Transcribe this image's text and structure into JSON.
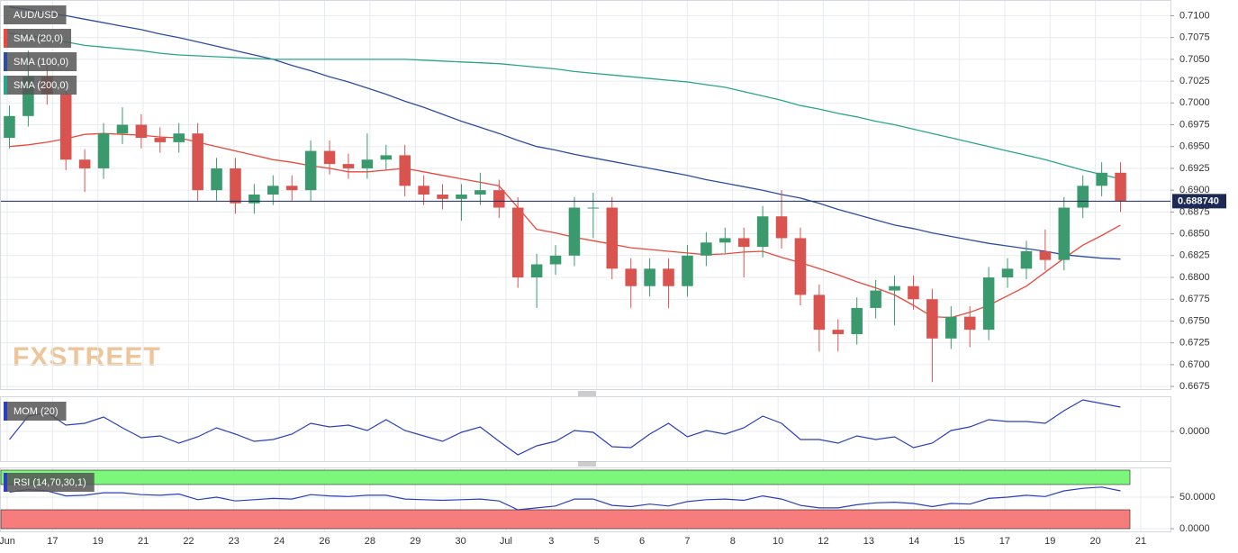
{
  "chart_data": [
    {
      "type": "candlestick",
      "title": "AUD/USD",
      "watermark": "FXSTREET",
      "up_color": "#3a9a6e",
      "down_color": "#d9534f",
      "x_labels": [
        "Jun",
        "17",
        "19",
        "21",
        "22",
        "23",
        "24",
        "26",
        "28",
        "29",
        "30",
        "Jul",
        "3",
        "5",
        "6",
        "7",
        "8",
        "10",
        "12",
        "13",
        "14",
        "15",
        "17",
        "19",
        "20",
        "21"
      ],
      "open": [
        0.696,
        0.6985,
        0.703,
        0.701,
        0.6935,
        0.6925,
        0.6965,
        0.6975,
        0.696,
        0.6955,
        0.6965,
        0.69,
        0.6925,
        0.6885,
        0.6895,
        0.6905,
        0.69,
        0.6945,
        0.693,
        0.6925,
        0.6935,
        0.694,
        0.6905,
        0.6895,
        0.689,
        0.6895,
        0.69,
        0.688,
        0.68,
        0.6815,
        0.6825,
        0.688,
        0.688,
        0.681,
        0.679,
        0.681,
        0.679,
        0.6825,
        0.684,
        0.6845,
        0.6835,
        0.687,
        0.6845,
        0.678,
        0.674,
        0.6735,
        0.6765,
        0.6785,
        0.679,
        0.6775,
        0.673,
        0.6755,
        0.674,
        0.68,
        0.681,
        0.683,
        0.682,
        0.688,
        0.6905,
        0.692
      ],
      "high": [
        0.6997,
        0.706,
        0.7042,
        0.7022,
        0.6947,
        0.6977,
        0.6995,
        0.6987,
        0.6972,
        0.6977,
        0.6977,
        0.6937,
        0.6937,
        0.6907,
        0.6917,
        0.6917,
        0.6957,
        0.6957,
        0.6942,
        0.6965,
        0.6952,
        0.6952,
        0.6917,
        0.6907,
        0.6907,
        0.692,
        0.6912,
        0.6892,
        0.6827,
        0.6837,
        0.6892,
        0.6897,
        0.6892,
        0.6822,
        0.6822,
        0.6822,
        0.6837,
        0.6852,
        0.6857,
        0.6857,
        0.6882,
        0.69,
        0.6857,
        0.6792,
        0.6752,
        0.6777,
        0.6797,
        0.6802,
        0.6802,
        0.6787,
        0.6767,
        0.6767,
        0.6812,
        0.6822,
        0.6842,
        0.6855,
        0.6892,
        0.6917,
        0.6932,
        0.6932
      ],
      "low": [
        0.6948,
        0.6973,
        0.6998,
        0.6923,
        0.6898,
        0.6913,
        0.6953,
        0.6948,
        0.6943,
        0.6943,
        0.6888,
        0.6888,
        0.6873,
        0.6873,
        0.6883,
        0.6888,
        0.6888,
        0.6918,
        0.6913,
        0.6913,
        0.6923,
        0.6893,
        0.6883,
        0.6878,
        0.6865,
        0.6883,
        0.6868,
        0.6788,
        0.6765,
        0.6803,
        0.6813,
        0.6845,
        0.6798,
        0.6765,
        0.6778,
        0.6765,
        0.6778,
        0.6813,
        0.6828,
        0.68,
        0.6823,
        0.6833,
        0.6768,
        0.6715,
        0.6715,
        0.6723,
        0.6753,
        0.6745,
        0.6763,
        0.668,
        0.6718,
        0.672,
        0.6728,
        0.6788,
        0.6798,
        0.6808,
        0.6808,
        0.6868,
        0.6893,
        0.6875
      ],
      "close": [
        0.6985,
        0.703,
        0.701,
        0.6935,
        0.6925,
        0.6965,
        0.6975,
        0.696,
        0.6955,
        0.6965,
        0.69,
        0.6925,
        0.6885,
        0.6895,
        0.6905,
        0.69,
        0.6945,
        0.693,
        0.6925,
        0.6935,
        0.694,
        0.6905,
        0.6895,
        0.689,
        0.6895,
        0.69,
        0.688,
        0.68,
        0.6815,
        0.6825,
        0.688,
        0.688,
        0.681,
        0.679,
        0.681,
        0.679,
        0.6825,
        0.684,
        0.6845,
        0.6835,
        0.687,
        0.6845,
        0.678,
        0.674,
        0.6735,
        0.6765,
        0.6785,
        0.679,
        0.6775,
        0.673,
        0.6755,
        0.674,
        0.68,
        0.681,
        0.683,
        0.682,
        0.688,
        0.6905,
        0.692,
        0.68874
      ],
      "series": [
        {
          "name": "SMA (20,0)",
          "color": "#e8493c",
          "values": [
            0.695,
            0.6952,
            0.6955,
            0.6959,
            0.6964,
            0.6965,
            0.6964,
            0.6963,
            0.6961,
            0.696,
            0.6955,
            0.695,
            0.6945,
            0.694,
            0.6935,
            0.6932,
            0.6928,
            0.6925,
            0.6921,
            0.6921,
            0.6923,
            0.6925,
            0.6921,
            0.6917,
            0.6913,
            0.6909,
            0.6905,
            0.688,
            0.6855,
            0.6851,
            0.6846,
            0.6842,
            0.6838,
            0.6834,
            0.6832,
            0.683,
            0.6828,
            0.6826,
            0.6827,
            0.6829,
            0.683,
            0.6823,
            0.6817,
            0.681,
            0.6803,
            0.6795,
            0.6788,
            0.678,
            0.6768,
            0.6755,
            0.6754,
            0.676,
            0.6768,
            0.6779,
            0.679,
            0.6806,
            0.6822,
            0.6837,
            0.6848,
            0.686
          ]
        },
        {
          "name": "SMA (100,0)",
          "color": "#2d4da0",
          "values": [
            0.711,
            0.7107,
            0.7103,
            0.71,
            0.7096,
            0.7092,
            0.7088,
            0.7084,
            0.7079,
            0.7075,
            0.707,
            0.7065,
            0.706,
            0.7055,
            0.705,
            0.7043,
            0.7037,
            0.703,
            0.7024,
            0.7017,
            0.701,
            0.7002,
            0.6995,
            0.6987,
            0.6979,
            0.6972,
            0.6965,
            0.6957,
            0.695,
            0.6946,
            0.6941,
            0.6937,
            0.6933,
            0.6929,
            0.6925,
            0.6921,
            0.6917,
            0.6912,
            0.6908,
            0.6904,
            0.69,
            0.6895,
            0.6891,
            0.6885,
            0.6878,
            0.6872,
            0.6866,
            0.686,
            0.6856,
            0.6851,
            0.6847,
            0.6843,
            0.6839,
            0.6836,
            0.6833,
            0.683,
            0.6826,
            0.6824,
            0.6822,
            0.6821
          ]
        },
        {
          "name": "SMA (200,0)",
          "color": "#2aa58a",
          "values": [
            0.708,
            0.7077,
            0.7074,
            0.707,
            0.7066,
            0.7064,
            0.7062,
            0.706,
            0.7057,
            0.7055,
            0.7054,
            0.7053,
            0.7052,
            0.7051,
            0.705,
            0.705,
            0.705,
            0.705,
            0.705,
            0.705,
            0.705,
            0.705,
            0.7049,
            0.7048,
            0.7047,
            0.7046,
            0.7045,
            0.7043,
            0.7041,
            0.7039,
            0.7036,
            0.7034,
            0.7032,
            0.703,
            0.7028,
            0.7026,
            0.7024,
            0.7021,
            0.7018,
            0.7013,
            0.7008,
            0.7003,
            0.6997,
            0.6993,
            0.6988,
            0.6984,
            0.6979,
            0.6975,
            0.697,
            0.6965,
            0.696,
            0.6955,
            0.695,
            0.6945,
            0.694,
            0.6935,
            0.6929,
            0.6923,
            0.6918,
            0.6913
          ]
        }
      ],
      "last_price": {
        "value": 0.68874,
        "label": "0.688740"
      },
      "ylim": [
        0.6672,
        0.7118
      ],
      "yticks": [
        {
          "value": 0.71,
          "label": "0.7100"
        },
        {
          "value": 0.7075,
          "label": "0.7075"
        },
        {
          "value": 0.705,
          "label": "0.7050"
        },
        {
          "value": 0.7025,
          "label": "0.7025"
        },
        {
          "value": 0.7,
          "label": "0.7000"
        },
        {
          "value": 0.6975,
          "label": "0.6975"
        },
        {
          "value": 0.695,
          "label": "0.6950"
        },
        {
          "value": 0.6925,
          "label": "0.6925"
        },
        {
          "value": 0.69,
          "label": "0.6900"
        },
        {
          "value": 0.6875,
          "label": "0.6875"
        },
        {
          "value": 0.685,
          "label": "0.6850"
        },
        {
          "value": 0.6825,
          "label": "0.6825"
        },
        {
          "value": 0.68,
          "label": "0.6800"
        },
        {
          "value": 0.6775,
          "label": "0.6775"
        },
        {
          "value": 0.675,
          "label": "0.6750"
        },
        {
          "value": 0.6725,
          "label": "0.6725"
        },
        {
          "value": 0.67,
          "label": "0.6700"
        },
        {
          "value": 0.6675,
          "label": "0.6675"
        }
      ],
      "grid": true
    },
    {
      "type": "line",
      "title": "MOM (20)",
      "color": "#2b3fbf",
      "values": [
        -0.0036,
        0.0068,
        0.0084,
        0.0028,
        0.0036,
        0.0064,
        0.0016,
        -0.0028,
        -0.002,
        -0.0052,
        -0.0024,
        0.0016,
        -0.0012,
        -0.0044,
        -0.0036,
        -0.0012,
        0.0036,
        0.002,
        0.0028,
        0.0004,
        0.0052,
        0.0004,
        -0.002,
        -0.0044,
        -0.0004,
        0.002,
        -0.0044,
        -0.0104,
        -0.0064,
        -0.0044,
        0.0004,
        -0.0004,
        -0.0068,
        -0.0072,
        -0.0012,
        0.0036,
        -0.0024,
        0.0004,
        -0.0012,
        0.0016,
        0.0068,
        0.0036,
        -0.0036,
        -0.0036,
        -0.0052,
        -0.002,
        -0.0036,
        -0.0024,
        -0.0072,
        -0.0052,
        0.0004,
        0.002,
        0.0052,
        0.0044,
        0.0044,
        0.0036,
        0.0092,
        0.014,
        0.0124,
        0.0108
      ],
      "ylim": [
        -0.0132,
        0.0156
      ],
      "yticks": [
        {
          "value": 0,
          "label": "0.0000"
        }
      ]
    },
    {
      "type": "line",
      "title": "RSI (14,70,30,1)",
      "color": "#2b3fbf",
      "overbought": 70,
      "oversold": 30,
      "overbought_color": "#7cf77c",
      "oversold_color": "#f77c7c",
      "values": [
        58,
        62,
        60,
        52,
        53,
        57,
        57,
        54,
        53,
        55,
        46,
        50,
        44,
        46,
        48,
        47,
        54,
        52,
        51,
        53,
        53,
        47,
        46,
        45,
        46,
        47,
        44,
        30,
        33,
        36,
        47,
        47,
        37,
        35,
        39,
        36,
        43,
        46,
        47,
        45,
        52,
        47,
        37,
        33,
        33,
        38,
        41,
        42,
        40,
        35,
        40,
        39,
        48,
        50,
        53,
        51,
        60,
        64,
        66,
        60
      ],
      "ylim": [
        -4.3,
        97.1
      ],
      "yticks": [
        {
          "value": 50,
          "label": "50.0000"
        },
        {
          "value": 0,
          "label": "0.0000"
        }
      ]
    }
  ]
}
